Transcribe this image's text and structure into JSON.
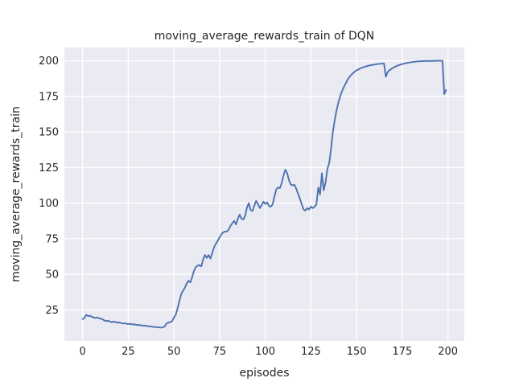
{
  "chart_data": {
    "type": "line",
    "title": "moving_average_rewards_train of DQN",
    "xlabel": "episodes",
    "ylabel": "moving_average_rewards_train",
    "x_start": 0,
    "x_step": 1,
    "xticks": [
      0,
      25,
      50,
      75,
      100,
      125,
      150,
      175,
      200
    ],
    "yticks": [
      25,
      50,
      75,
      100,
      125,
      150,
      175,
      200
    ],
    "xlim": [
      -9.95,
      208.95
    ],
    "ylim": [
      3.1,
      209.4
    ],
    "grid": true,
    "legend": "none",
    "colors": {
      "figure_bg": "#ffffff",
      "axes_bg": "#eaeaf2",
      "grid": "#ffffff",
      "line": "#4c72b0",
      "text": "#262626"
    },
    "values": [
      18.5,
      19.2,
      21.5,
      20.6,
      20.9,
      20.2,
      19.6,
      19.3,
      19.7,
      19.1,
      18.7,
      18.3,
      17.5,
      17.1,
      17.4,
      16.7,
      16.3,
      16.8,
      16.4,
      15.9,
      16.2,
      15.7,
      15.4,
      15.6,
      15.2,
      15.0,
      15.2,
      14.8,
      14.9,
      14.5,
      14.3,
      14.4,
      14.1,
      13.9,
      14.0,
      13.7,
      13.5,
      13.3,
      13.2,
      13.0,
      12.9,
      12.8,
      12.6,
      12.5,
      12.8,
      13.4,
      15.5,
      16.0,
      16.3,
      17.0,
      19.5,
      21.5,
      26.0,
      31.0,
      36.0,
      38.5,
      40.5,
      43.5,
      45.5,
      44.3,
      48.0,
      52.5,
      55.0,
      56.0,
      56.5,
      55.5,
      60.5,
      63.5,
      61.5,
      63.5,
      61.0,
      65.0,
      69.0,
      71.5,
      73.5,
      76.0,
      78.0,
      79.5,
      80.0,
      80.0,
      81.5,
      84.0,
      86.0,
      87.5,
      85.0,
      89.0,
      92.0,
      89.0,
      88.5,
      91.0,
      97.0,
      100.0,
      95.0,
      94.5,
      98.0,
      101.5,
      99.5,
      96.5,
      98.5,
      101.0,
      99.5,
      100.5,
      98.0,
      97.5,
      99.0,
      104.5,
      109.5,
      111.0,
      110.5,
      114.0,
      119.5,
      123.5,
      121.0,
      116.0,
      113.0,
      112.5,
      112.8,
      110.0,
      106.5,
      103.0,
      99.0,
      95.5,
      94.8,
      96.5,
      95.5,
      97.5,
      96.5,
      97.5,
      99.0,
      111.0,
      106.0,
      121.0,
      109.0,
      114.5,
      124.0,
      128.0,
      138.0,
      150.0,
      158.0,
      165.0,
      170.5,
      175.0,
      178.5,
      181.5,
      184.0,
      186.5,
      188.5,
      190.0,
      191.3,
      192.4,
      193.3,
      194.0,
      194.6,
      195.1,
      195.6,
      196.0,
      196.4,
      196.7,
      197.0,
      197.2,
      197.4,
      197.6,
      197.8,
      197.9,
      198.0,
      198.1,
      188.8,
      192.0,
      193.3,
      194.3,
      195.1,
      195.8,
      196.4,
      196.9,
      197.3,
      197.7,
      198.0,
      198.3,
      198.6,
      198.8,
      199.0,
      199.2,
      199.4,
      199.5,
      199.6,
      199.7,
      199.75,
      199.8,
      199.85,
      199.9,
      199.9,
      199.9,
      199.95,
      199.95,
      200.0,
      200.0,
      200.0,
      200.0,
      176.5,
      179.5
    ]
  }
}
